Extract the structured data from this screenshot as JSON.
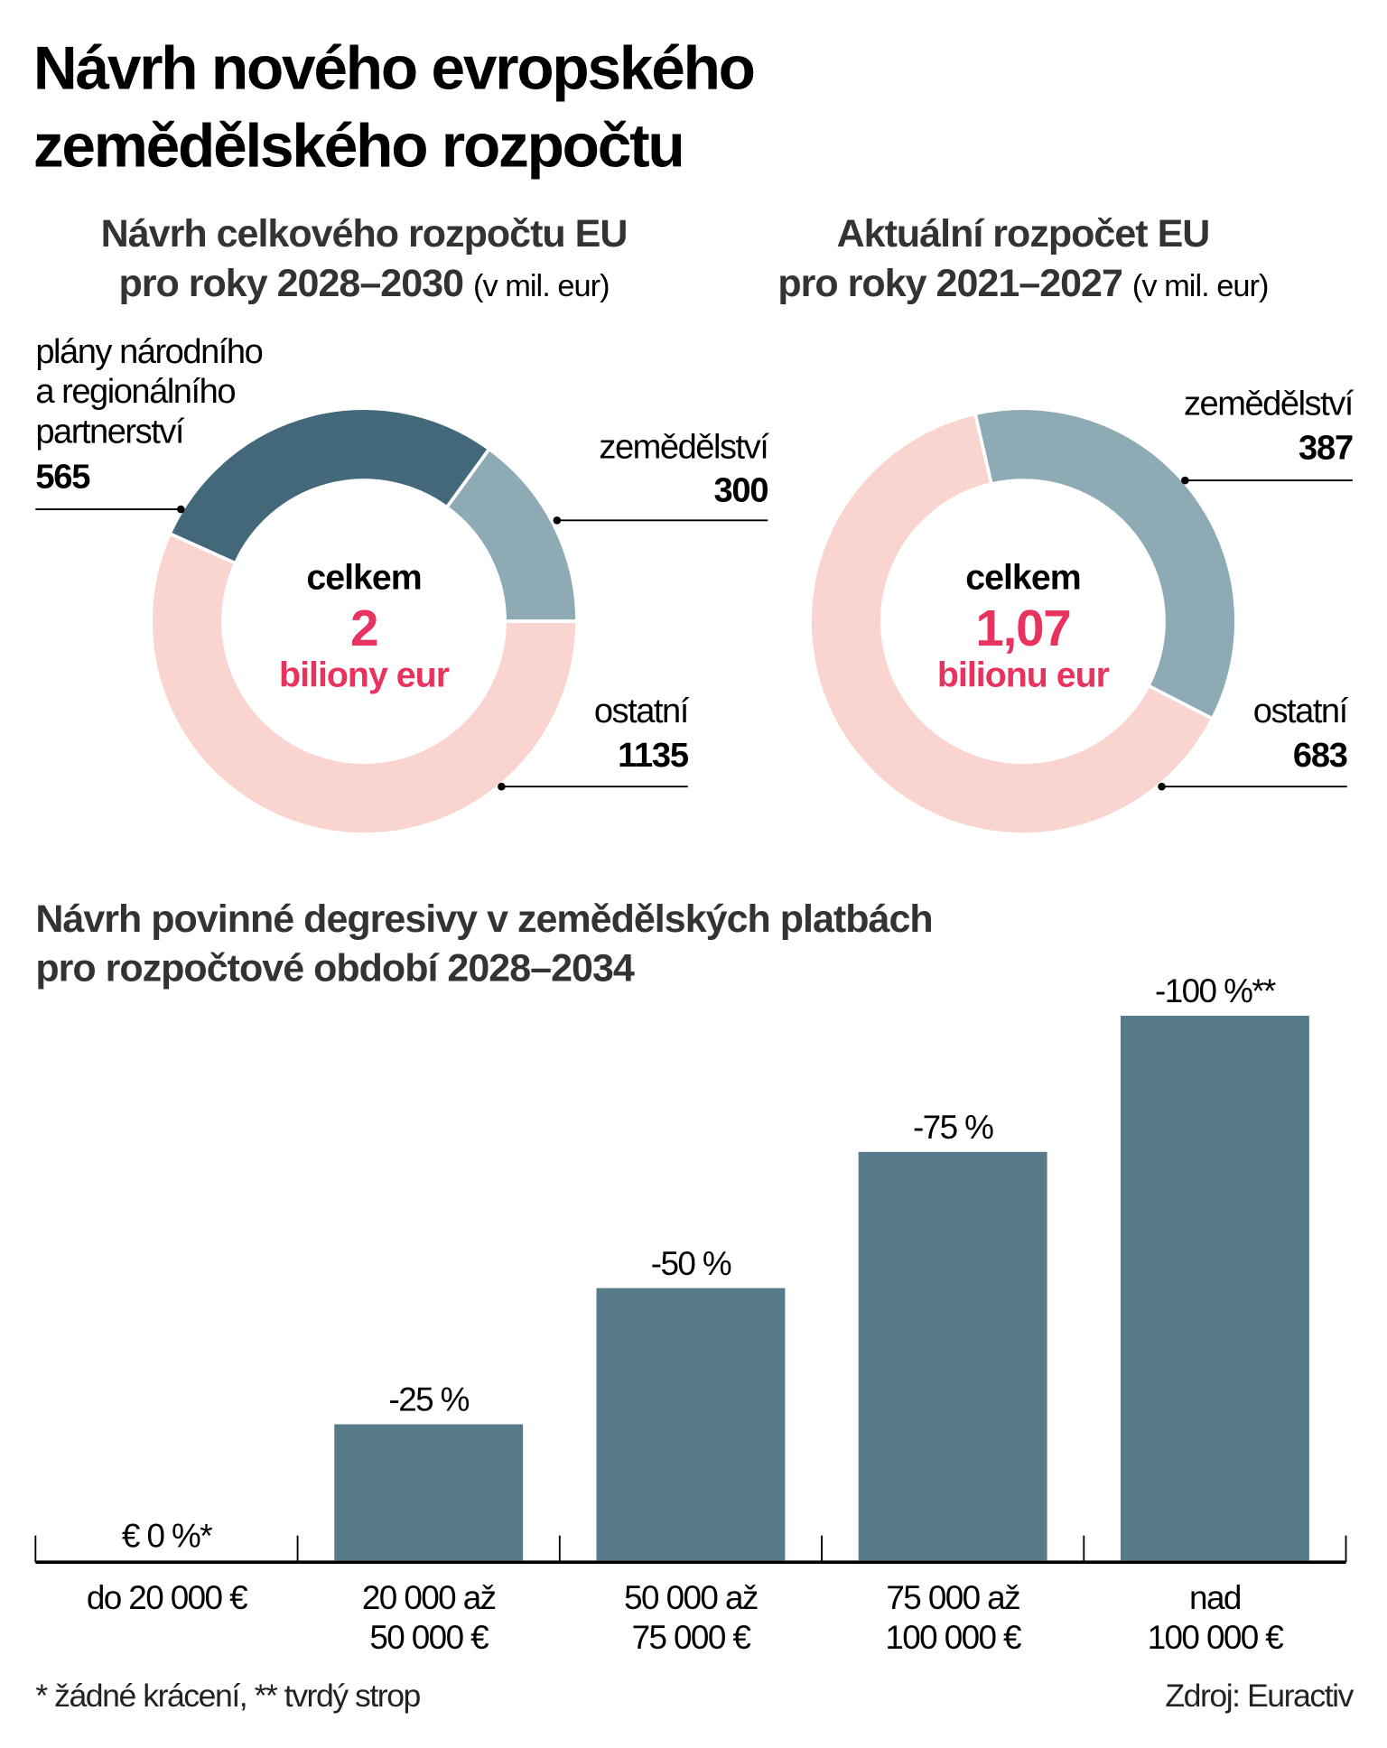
{
  "title": [
    "Návrh nového evropského",
    "zemědělského rozpočtu"
  ],
  "colors": {
    "dark": "#436879",
    "light": "#8eaab5",
    "pink": "#fad5d0",
    "bar": "#587b8b",
    "accent": "#e8335e"
  },
  "donuts": [
    {
      "title_line1": "Návrh celkového rozpočtu EU",
      "title_line2": "pro roky 2028–2030",
      "title_unit": "(v mil. eur)",
      "center_label": "celkem",
      "center_value": "2",
      "center_unit": "biliony eur",
      "segments": [
        {
          "label_lines": [
            "zemědělství"
          ],
          "value": 300,
          "color": "light"
        },
        {
          "label_lines": [
            "plány národního",
            "a regionálního",
            "partnerství"
          ],
          "value": 565,
          "color": "dark"
        },
        {
          "label_lines": [
            "ostatní"
          ],
          "value": 1135,
          "color": "pink"
        }
      ]
    },
    {
      "title_line1": "Aktuální rozpočet EU",
      "title_line2": "pro roky 2021–2027",
      "title_unit": "(v mil. eur)",
      "center_label": "celkem",
      "center_value": "1,07",
      "center_unit": "bilionu eur",
      "segments": [
        {
          "label_lines": [
            "zemědělství"
          ],
          "value": 387,
          "color": "light"
        },
        {
          "label_lines": [
            "ostatní"
          ],
          "value": 683,
          "color": "pink"
        }
      ]
    }
  ],
  "chart_data": {
    "type": "bar",
    "title": [
      "Návrh povinné degresivy v zemědělských platbách",
      "pro rozpočtové období 2028–2034"
    ],
    "categories": [
      [
        "do 20 000 €"
      ],
      [
        "20 000 až",
        "50 000 €"
      ],
      [
        "50 000 až",
        "75 000 €"
      ],
      [
        "75 000 až",
        "100 000 €"
      ],
      [
        "nad",
        "100 000 €"
      ]
    ],
    "values": [
      0,
      25,
      50,
      75,
      100
    ],
    "data_labels": [
      "€ 0 %*",
      "-25 %",
      "-50 %",
      "-75 %",
      "-100 %**"
    ],
    "ylim": [
      0,
      100
    ],
    "grid": false
  },
  "footnote": "* žádné krácení, ** tvrdý strop",
  "source": "Zdroj: Euractiv"
}
